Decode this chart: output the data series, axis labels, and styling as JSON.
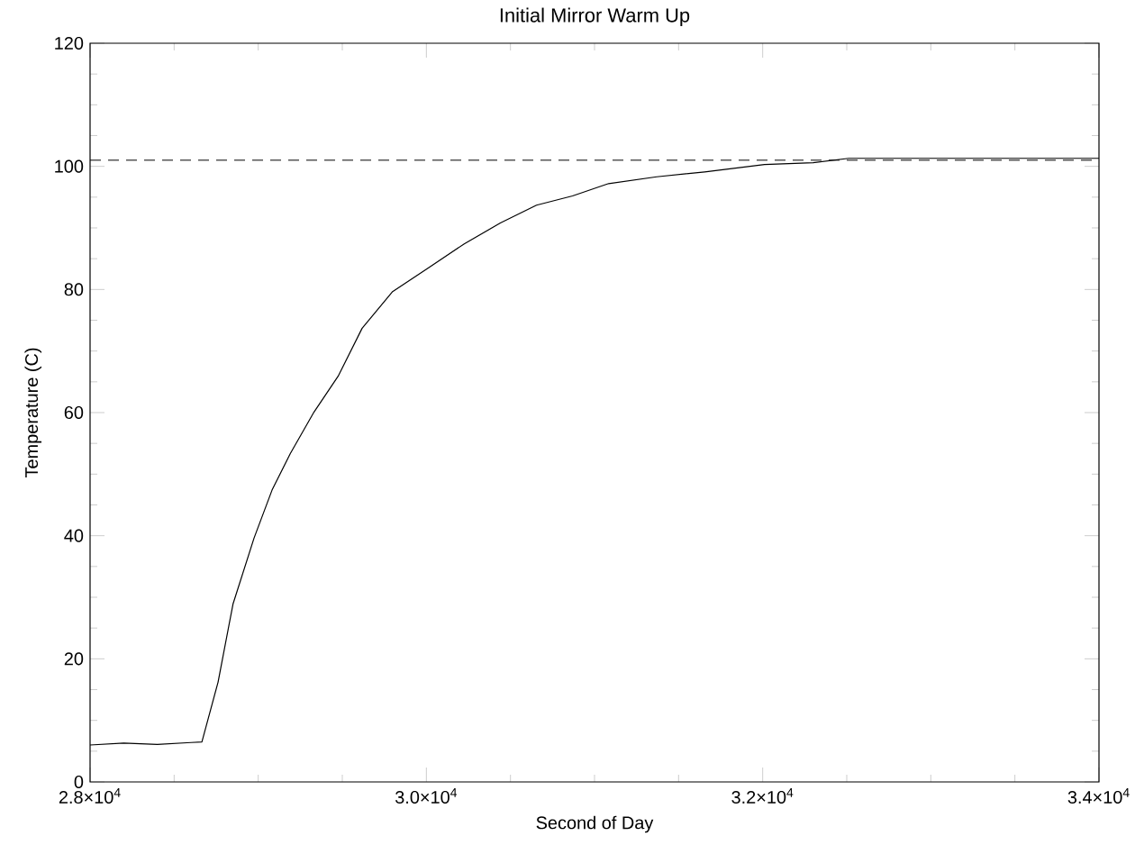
{
  "chart_data": {
    "type": "line",
    "title": "Initial Mirror Warm Up",
    "xlabel": "Second of Day",
    "ylabel": "Temperature (C)",
    "xlim": [
      28000,
      34000
    ],
    "ylim": [
      0,
      120
    ],
    "xticks": [
      {
        "value": 28000,
        "label": "2.8×10$^{4}$"
      },
      {
        "value": 30000,
        "label": "3.0×10$^{4}$"
      },
      {
        "value": 32000,
        "label": "3.2×10$^{4}$"
      },
      {
        "value": 34000,
        "label": "3.4×10$^{4}$"
      }
    ],
    "yticks": [
      0,
      20,
      40,
      60,
      80,
      100,
      120
    ],
    "grid": false,
    "marker": "none",
    "line_style": "solid",
    "ref_lines": [
      {
        "axis": "y",
        "value": 101,
        "color": "#000000",
        "line_style": "dashed"
      }
    ],
    "series": [
      {
        "color": "#000000",
        "x": [
          28000,
          28200,
          28400,
          28600,
          28665,
          28761,
          28850,
          28975,
          29082,
          29190,
          29332,
          29475,
          29618,
          29797,
          30011,
          30225,
          30440,
          30655,
          30869,
          31084,
          31370,
          31655,
          32011,
          32300,
          32512,
          33000,
          33500,
          34000
        ],
        "values": [
          6,
          6.3,
          6.1,
          6.4,
          6.5,
          16.2,
          28.9,
          39.6,
          47.4,
          53.3,
          60.1,
          65.9,
          73.7,
          79.6,
          83.5,
          87.4,
          90.8,
          93.7,
          95.2,
          97.2,
          98.3,
          99.1,
          100.3,
          100.6,
          101.3,
          101.3,
          101.3,
          101.3
        ]
      }
    ]
  }
}
